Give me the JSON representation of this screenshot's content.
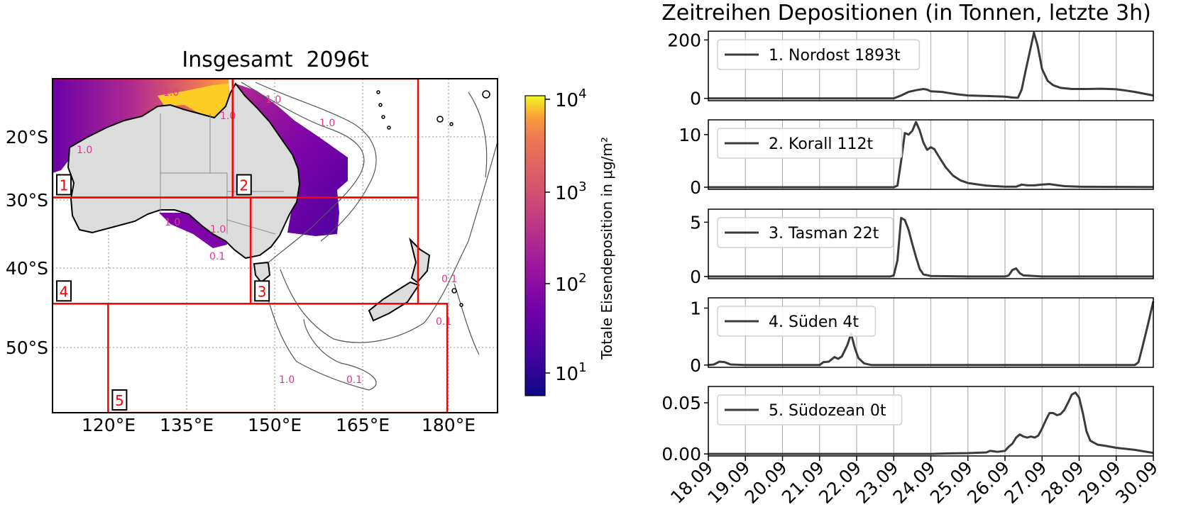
{
  "map": {
    "title": "Insgesamt  2096t",
    "lon_ticks": [
      "120°E",
      "135°E",
      "150°E",
      "165°E",
      "180°E"
    ],
    "lat_ticks": [
      "20°S",
      "30°S",
      "40°S",
      "50°S"
    ],
    "extent": {
      "lon": [
        109,
        193
      ],
      "lat": [
        -58.8,
        -11
      ]
    },
    "regions": [
      {
        "id": "1",
        "lon": [
          109,
          143
        ],
        "lat": [
          -28.0,
          -11
        ]
      },
      {
        "id": "2",
        "lon": [
          143,
          178
        ],
        "lat": [
          -28.0,
          -11
        ]
      },
      {
        "id": "3",
        "lon": [
          146.4,
          178
        ],
        "lat": [
          -43.2,
          -28.0
        ]
      },
      {
        "id": "4",
        "lon": [
          109,
          146.4
        ],
        "lat": [
          -43.2,
          -28.0
        ]
      },
      {
        "id": "5",
        "lon": [
          119.5,
          183.5
        ],
        "lat": [
          -58.8,
          -43.2
        ]
      }
    ],
    "contour_labels": [
      "1.0",
      "1.0",
      "1.0",
      "1.0",
      "1.0",
      "0.1",
      "0.1",
      "0.1",
      "1.0",
      "0.1",
      "1.0",
      "1.0"
    ],
    "colorbar": {
      "label": "Totale Eisendeposition in μg/m²",
      "scale": "log",
      "range": [
        6,
        12000
      ],
      "ticks": [
        "10",
        "10",
        "10",
        "10"
      ],
      "tick_exponents": [
        "1",
        "2",
        "3",
        "4"
      ],
      "colormap": "plasma"
    }
  },
  "chart_data": {
    "type": "line",
    "title": "Zeitreihen Depositionen (in Tonnen, letzte 3h)",
    "x_ticks": [
      "18.09",
      "19.09",
      "20.09",
      "21.09",
      "22.09",
      "23.09",
      "24.09",
      "25.09",
      "26.09",
      "27.09",
      "28.09",
      "29.09",
      "30.09"
    ],
    "x_range": [
      "18.09",
      "30.09"
    ],
    "grid": "vertical",
    "line_color": "#3b3b3b",
    "legend_position": "upper-left",
    "panels": [
      {
        "legend": "1. Nordost 1893t",
        "ylim": [
          -8,
          230
        ],
        "y_ticks": [
          0,
          200
        ],
        "y_tick_labels": [
          "0",
          "200"
        ],
        "points": [
          [
            0,
            0
          ],
          [
            5,
            0
          ],
          [
            5.2,
            10
          ],
          [
            5.4,
            22
          ],
          [
            5.6,
            28
          ],
          [
            5.8,
            32
          ],
          [
            5.9,
            30
          ],
          [
            6,
            24
          ],
          [
            6.3,
            22
          ],
          [
            6.5,
            18
          ],
          [
            6.7,
            14
          ],
          [
            7,
            10
          ],
          [
            7.5,
            8
          ],
          [
            8,
            6
          ],
          [
            8.2,
            3
          ],
          [
            8.35,
            2
          ],
          [
            8.45,
            30
          ],
          [
            8.55,
            90
          ],
          [
            8.7,
            178
          ],
          [
            8.78,
            225
          ],
          [
            8.88,
            180
          ],
          [
            9,
            100
          ],
          [
            9.15,
            60
          ],
          [
            9.3,
            45
          ],
          [
            9.5,
            36
          ],
          [
            9.8,
            32
          ],
          [
            10.2,
            32
          ],
          [
            10.6,
            33
          ],
          [
            11,
            31
          ],
          [
            11.2,
            28
          ],
          [
            11.5,
            22
          ],
          [
            12,
            10
          ]
        ]
      },
      {
        "legend": "2. Korall 112t",
        "ylim": [
          -0.4,
          12.8
        ],
        "y_ticks": [
          0,
          10
        ],
        "y_tick_labels": [
          "0",
          "10"
        ],
        "points": [
          [
            0,
            0
          ],
          [
            5,
            0
          ],
          [
            5.1,
            0.3
          ],
          [
            5.2,
            5
          ],
          [
            5.3,
            10.3
          ],
          [
            5.4,
            10
          ],
          [
            5.5,
            10.7
          ],
          [
            5.6,
            12.4
          ],
          [
            5.7,
            10.8
          ],
          [
            5.8,
            8.5
          ],
          [
            5.9,
            7.1
          ],
          [
            6,
            7.6
          ],
          [
            6.1,
            7.2
          ],
          [
            6.2,
            6
          ],
          [
            6.4,
            3.8
          ],
          [
            6.6,
            2.2
          ],
          [
            6.8,
            1.3
          ],
          [
            7,
            0.8
          ],
          [
            7.5,
            0.3
          ],
          [
            8,
            0.1
          ],
          [
            8.3,
            0.1
          ],
          [
            8.45,
            0.5
          ],
          [
            8.6,
            0.35
          ],
          [
            8.8,
            0.35
          ],
          [
            9,
            0.5
          ],
          [
            9.2,
            0.6
          ],
          [
            9.4,
            0.4
          ],
          [
            9.6,
            0.2
          ],
          [
            10,
            0.1
          ],
          [
            12,
            0.05
          ]
        ]
      },
      {
        "legend": "3. Tasman 22t",
        "ylim": [
          -0.2,
          6.2
        ],
        "y_ticks": [
          0,
          5
        ],
        "y_tick_labels": [
          "0",
          "5"
        ],
        "points": [
          [
            0,
            0
          ],
          [
            4.9,
            0
          ],
          [
            5,
            0.1
          ],
          [
            5.1,
            1.5
          ],
          [
            5.2,
            5.4
          ],
          [
            5.3,
            5.2
          ],
          [
            5.4,
            4.3
          ],
          [
            5.5,
            3
          ],
          [
            5.6,
            1.8
          ],
          [
            5.7,
            0.7
          ],
          [
            5.8,
            0.2
          ],
          [
            6,
            0.05
          ],
          [
            7,
            0
          ],
          [
            8,
            0
          ],
          [
            8.1,
            0.1
          ],
          [
            8.2,
            0.6
          ],
          [
            8.3,
            0.75
          ],
          [
            8.4,
            0.3
          ],
          [
            8.5,
            0.1
          ],
          [
            9,
            0
          ],
          [
            12,
            0
          ]
        ]
      },
      {
        "legend": "4. Süden 4t",
        "ylim": [
          -0.04,
          1.18
        ],
        "y_ticks": [
          0,
          1
        ],
        "y_tick_labels": [
          "0",
          "1"
        ],
        "points": [
          [
            0,
            0
          ],
          [
            0.15,
            0.01
          ],
          [
            0.3,
            0.06
          ],
          [
            0.45,
            0.05
          ],
          [
            0.6,
            0.01
          ],
          [
            1,
            0
          ],
          [
            3,
            0
          ],
          [
            3.1,
            0.05
          ],
          [
            3.25,
            0.06
          ],
          [
            3.4,
            0.14
          ],
          [
            3.5,
            0.11
          ],
          [
            3.6,
            0.15
          ],
          [
            3.75,
            0.35
          ],
          [
            3.85,
            0.55
          ],
          [
            3.95,
            0.3
          ],
          [
            4.05,
            0.12
          ],
          [
            4.2,
            0.03
          ],
          [
            4.4,
            0
          ],
          [
            11,
            0
          ],
          [
            11.5,
            0
          ],
          [
            11.6,
            0.05
          ],
          [
            11.7,
            0.3
          ],
          [
            11.85,
            0.7
          ],
          [
            12,
            1.12
          ]
        ]
      },
      {
        "legend": "5. Südozean 0t",
        "ylim": [
          -0.002,
          0.066
        ],
        "y_ticks": [
          0,
          0.05
        ],
        "y_tick_labels": [
          "0.00",
          "0.05"
        ],
        "points": [
          [
            0,
            0
          ],
          [
            6,
            0
          ],
          [
            6.5,
            0.0005
          ],
          [
            7,
            0.0008
          ],
          [
            7.5,
            0.0015
          ],
          [
            7.6,
            0.003
          ],
          [
            7.8,
            0.002
          ],
          [
            8,
            0.003
          ],
          [
            8.1,
            0.007
          ],
          [
            8.2,
            0.01
          ],
          [
            8.3,
            0.016
          ],
          [
            8.4,
            0.019
          ],
          [
            8.5,
            0.017
          ],
          [
            8.6,
            0.016
          ],
          [
            8.7,
            0.017
          ],
          [
            8.8,
            0.016
          ],
          [
            8.9,
            0.018
          ],
          [
            9,
            0.025
          ],
          [
            9.1,
            0.033
          ],
          [
            9.2,
            0.04
          ],
          [
            9.3,
            0.04
          ],
          [
            9.4,
            0.038
          ],
          [
            9.5,
            0.039
          ],
          [
            9.6,
            0.043
          ],
          [
            9.7,
            0.05
          ],
          [
            9.8,
            0.058
          ],
          [
            9.9,
            0.06
          ],
          [
            10,
            0.055
          ],
          [
            10.1,
            0.04
          ],
          [
            10.2,
            0.022
          ],
          [
            10.3,
            0.013
          ],
          [
            10.4,
            0.011
          ],
          [
            10.5,
            0.009
          ],
          [
            10.7,
            0.008
          ],
          [
            11,
            0.006
          ],
          [
            11.5,
            0.004
          ],
          [
            12,
            0.001
          ]
        ]
      }
    ]
  }
}
